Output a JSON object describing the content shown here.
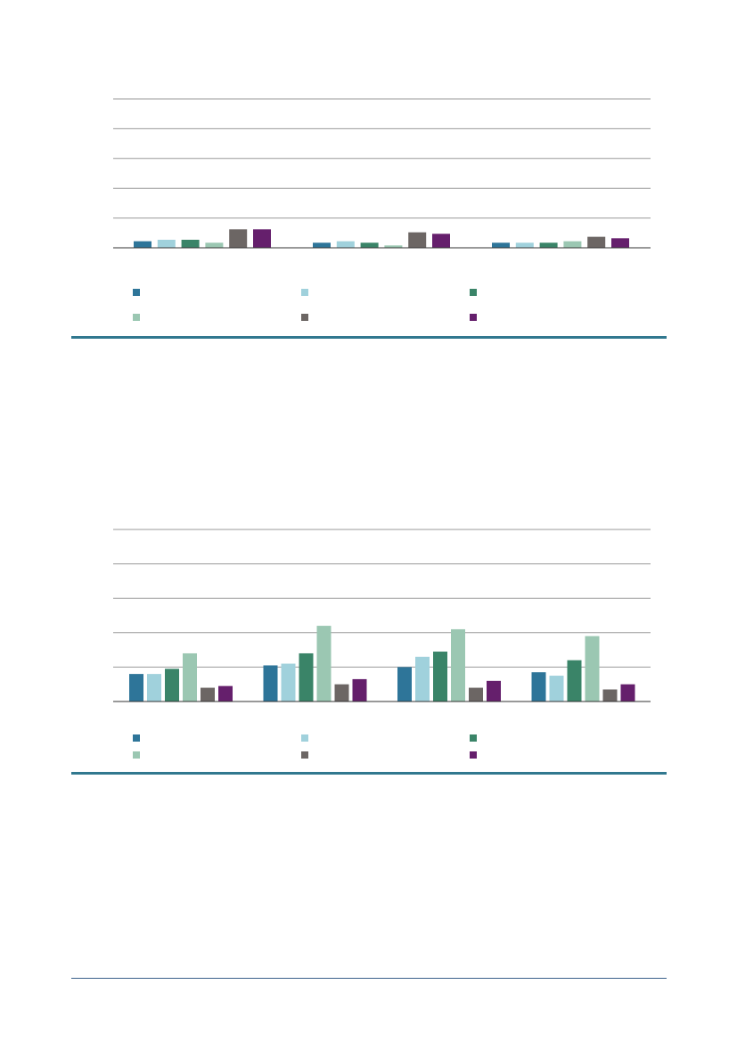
{
  "colors": {
    "rule": "#31788f",
    "footer_rule": "#3a5f8a",
    "gridline": "#9a9a9a",
    "axis": "#333333"
  },
  "chart_data": [
    {
      "type": "bar",
      "title": "",
      "xlabel": "",
      "ylabel": "",
      "categories": [
        "",
        "",
        ""
      ],
      "ylim": [
        0,
        5
      ],
      "grid": true,
      "legend": "bottom",
      "series": [
        {
          "color": "#2e7599",
          "values": [
            0.22,
            0.17,
            0.17
          ]
        },
        {
          "color": "#a0d1dc",
          "values": [
            0.27,
            0.22,
            0.17
          ]
        },
        {
          "color": "#3a8468",
          "values": [
            0.27,
            0.17,
            0.17
          ]
        },
        {
          "color": "#9bc7b2",
          "values": [
            0.17,
            0.08,
            0.22
          ]
        },
        {
          "color": "#6c6664",
          "values": [
            0.62,
            0.52,
            0.37
          ]
        },
        {
          "color": "#651f6c",
          "values": [
            0.62,
            0.47,
            0.32
          ]
        }
      ]
    },
    {
      "type": "bar",
      "title": "",
      "xlabel": "",
      "ylabel": "",
      "categories": [
        "",
        "",
        "",
        ""
      ],
      "ylim": [
        0,
        5
      ],
      "grid": true,
      "legend": "bottom",
      "series": [
        {
          "color": "#2e7599",
          "values": [
            0.8,
            1.05,
            1.0,
            0.85
          ]
        },
        {
          "color": "#a0d1dc",
          "values": [
            0.8,
            1.1,
            1.3,
            0.75
          ]
        },
        {
          "color": "#3a8468",
          "values": [
            0.95,
            1.4,
            1.45,
            1.2
          ]
        },
        {
          "color": "#9bc7b2",
          "values": [
            1.4,
            2.2,
            2.1,
            1.9
          ]
        },
        {
          "color": "#6c6664",
          "values": [
            0.4,
            0.5,
            0.4,
            0.35
          ]
        },
        {
          "color": "#651f6c",
          "values": [
            0.45,
            0.65,
            0.6,
            0.5
          ]
        }
      ]
    }
  ]
}
